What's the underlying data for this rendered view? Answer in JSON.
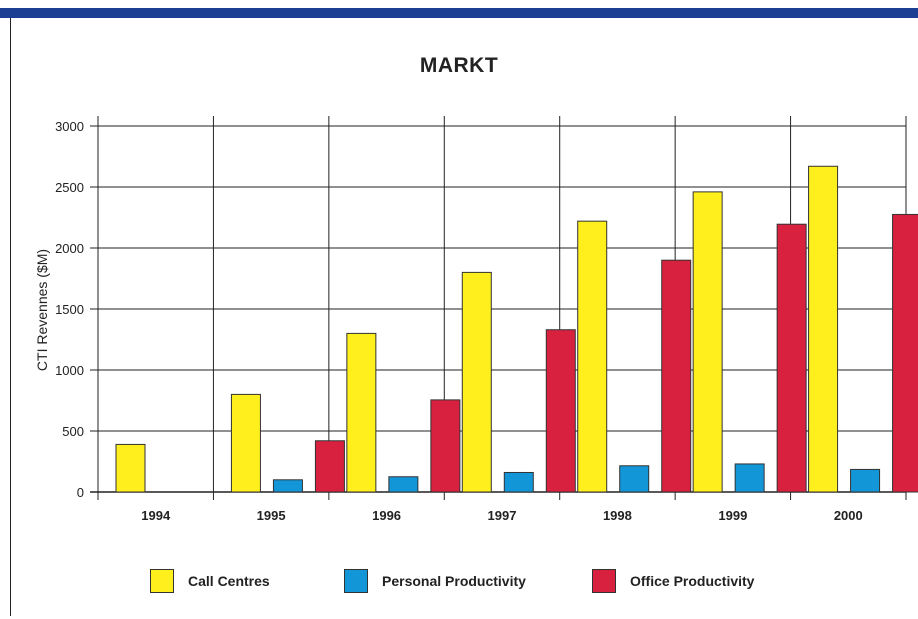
{
  "chart_data": {
    "type": "bar",
    "title": "MARKT",
    "xlabel": "",
    "ylabel": "CTI Revennes ($M)",
    "ylim": [
      0,
      3000
    ],
    "yticks": [
      0,
      500,
      1000,
      1500,
      2000,
      2500,
      3000
    ],
    "categories": [
      "1994",
      "1995",
      "1996",
      "1997",
      "1998",
      "1999",
      "2000"
    ],
    "grid": true,
    "legend_position": "bottom",
    "series": [
      {
        "name": "Call Centres",
        "color": "#ffef1c",
        "values": [
          390,
          800,
          1300,
          1800,
          2220,
          2460,
          2670
        ]
      },
      {
        "name": "Personal Productivity",
        "color": "#1296d8",
        "values": [
          0,
          100,
          125,
          160,
          215,
          230,
          185
        ]
      },
      {
        "name": "Office Productivity",
        "color": "#d8203f",
        "values": [
          0,
          420,
          755,
          1330,
          1900,
          2195,
          2275
        ]
      }
    ]
  }
}
